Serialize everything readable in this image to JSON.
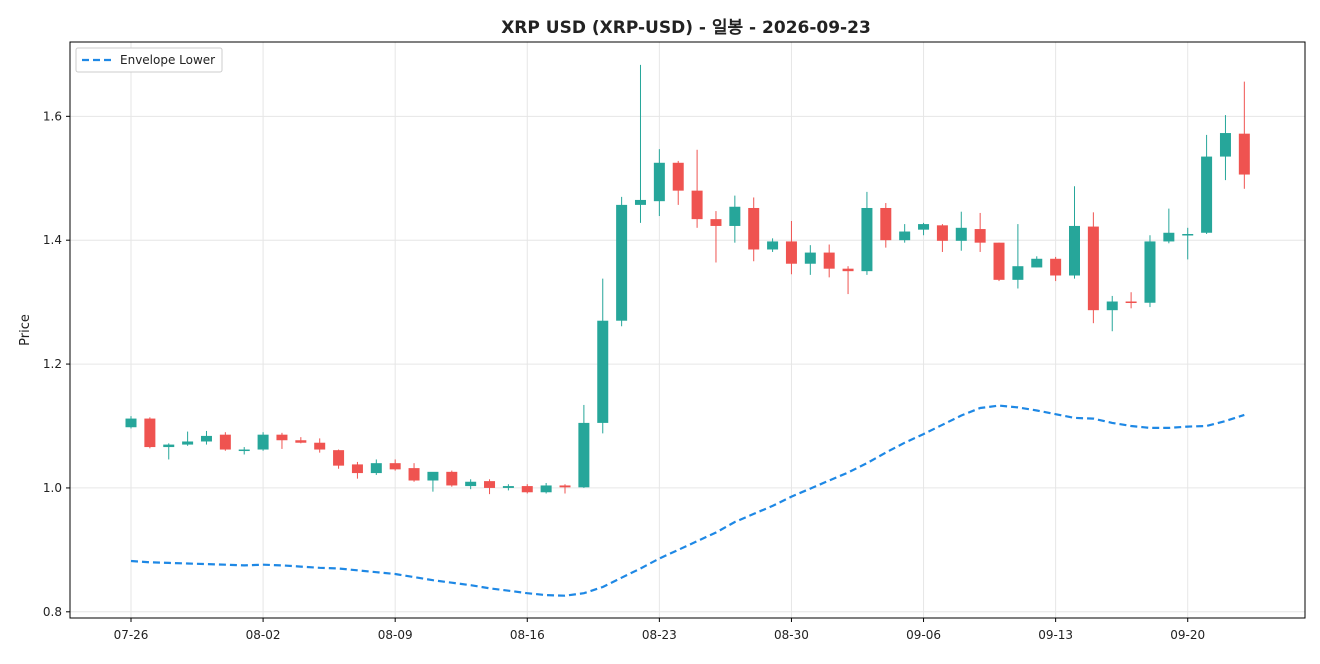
{
  "chart_data": {
    "type": "candlestick",
    "title": "XRP USD (XRP-USD) - 일봉 - 2026-09-23",
    "xlabel": "",
    "ylabel": "Price",
    "ylim": [
      0.79,
      1.72
    ],
    "y_ticks": [
      "0.8",
      "1.0",
      "1.2",
      "1.4",
      "1.6"
    ],
    "x_ticks": [
      "07-26",
      "08-02",
      "08-09",
      "08-16",
      "08-23",
      "08-30",
      "09-06",
      "09-13",
      "09-20"
    ],
    "grid": true,
    "legend": {
      "position": "top-left",
      "entries": [
        "Envelope Lower"
      ]
    },
    "colors": {
      "up": "#26a69a",
      "down": "#ef5350",
      "envelope": "#1e88e5",
      "grid": "#e6e6e6"
    },
    "dates": [
      "07-26",
      "07-27",
      "07-28",
      "07-29",
      "07-30",
      "07-31",
      "08-01",
      "08-02",
      "08-03",
      "08-04",
      "08-05",
      "08-06",
      "08-07",
      "08-08",
      "08-09",
      "08-10",
      "08-11",
      "08-12",
      "08-13",
      "08-14",
      "08-15",
      "08-16",
      "08-17",
      "08-18",
      "08-19",
      "08-20",
      "08-21",
      "08-22",
      "08-23",
      "08-24",
      "08-25",
      "08-26",
      "08-27",
      "08-28",
      "08-29",
      "08-30",
      "08-31",
      "09-01",
      "09-02",
      "09-03",
      "09-04",
      "09-05",
      "09-06",
      "09-07",
      "09-08",
      "09-09",
      "09-10",
      "09-11",
      "09-12",
      "09-13",
      "09-14",
      "09-15",
      "09-16",
      "09-17",
      "09-18",
      "09-19",
      "09-20",
      "09-21",
      "09-22",
      "09-23"
    ],
    "open": [
      1.098,
      1.112,
      1.066,
      1.07,
      1.075,
      1.086,
      1.062,
      1.062,
      1.086,
      1.077,
      1.073,
      1.061,
      1.038,
      1.024,
      1.04,
      1.032,
      1.012,
      1.026,
      1.003,
      1.011,
      1.0,
      1.003,
      0.993,
      1.004,
      1.001,
      1.105,
      1.27,
      1.457,
      1.463,
      1.525,
      1.48,
      1.434,
      1.423,
      1.452,
      1.385,
      1.398,
      1.362,
      1.38,
      1.354,
      1.35,
      1.452,
      1.4,
      1.417,
      1.424,
      1.399,
      1.418,
      1.396,
      1.336,
      1.356,
      1.37,
      1.343,
      1.422,
      1.287,
      1.301,
      1.299,
      1.398,
      1.41,
      1.412,
      1.535,
      1.572
    ],
    "close": [
      1.112,
      1.066,
      1.07,
      1.075,
      1.084,
      1.062,
      1.062,
      1.086,
      1.077,
      1.073,
      1.062,
      1.036,
      1.024,
      1.04,
      1.03,
      1.012,
      1.026,
      1.004,
      1.01,
      1.0,
      1.003,
      0.993,
      1.004,
      1.001,
      1.105,
      1.27,
      1.457,
      1.465,
      1.525,
      1.48,
      1.434,
      1.423,
      1.454,
      1.385,
      1.398,
      1.362,
      1.38,
      1.354,
      1.35,
      1.452,
      1.4,
      1.414,
      1.426,
      1.399,
      1.42,
      1.396,
      1.336,
      1.358,
      1.37,
      1.343,
      1.423,
      1.287,
      1.301,
      1.299,
      1.398,
      1.412,
      1.41,
      1.535,
      1.573,
      1.506
    ],
    "high": [
      1.116,
      1.114,
      1.072,
      1.091,
      1.092,
      1.09,
      1.066,
      1.09,
      1.089,
      1.082,
      1.08,
      1.062,
      1.042,
      1.046,
      1.046,
      1.04,
      1.024,
      1.028,
      1.014,
      1.014,
      1.006,
      1.006,
      1.008,
      1.006,
      1.134,
      1.338,
      1.47,
      1.683,
      1.547,
      1.528,
      1.546,
      1.447,
      1.472,
      1.469,
      1.403,
      1.431,
      1.392,
      1.393,
      1.358,
      1.478,
      1.46,
      1.426,
      1.428,
      1.426,
      1.446,
      1.444,
      1.396,
      1.426,
      1.374,
      1.373,
      1.487,
      1.445,
      1.31,
      1.316,
      1.408,
      1.451,
      1.42,
      1.57,
      1.602,
      1.656
    ],
    "low": [
      1.096,
      1.064,
      1.046,
      1.068,
      1.07,
      1.06,
      1.054,
      1.06,
      1.063,
      1.072,
      1.057,
      1.031,
      1.015,
      1.021,
      1.028,
      1.01,
      0.994,
      1.002,
      0.998,
      0.99,
      0.996,
      0.991,
      0.991,
      0.991,
      1.0,
      1.088,
      1.261,
      1.428,
      1.439,
      1.457,
      1.42,
      1.364,
      1.396,
      1.366,
      1.381,
      1.345,
      1.344,
      1.34,
      1.313,
      1.344,
      1.388,
      1.396,
      1.408,
      1.381,
      1.383,
      1.381,
      1.334,
      1.322,
      1.356,
      1.334,
      1.338,
      1.266,
      1.253,
      1.29,
      1.292,
      1.395,
      1.369,
      1.41,
      1.497,
      1.483
    ],
    "series": [
      {
        "name": "Envelope Lower",
        "values": [
          0.882,
          0.88,
          0.879,
          0.878,
          0.877,
          0.876,
          0.875,
          0.876,
          0.875,
          0.873,
          0.871,
          0.87,
          0.867,
          0.864,
          0.861,
          0.856,
          0.851,
          0.847,
          0.843,
          0.838,
          0.834,
          0.83,
          0.827,
          0.826,
          0.83,
          0.84,
          0.855,
          0.87,
          0.886,
          0.9,
          0.914,
          0.928,
          0.945,
          0.958,
          0.971,
          0.986,
          0.999,
          1.012,
          1.025,
          1.04,
          1.057,
          1.073,
          1.087,
          1.102,
          1.117,
          1.129,
          1.133,
          1.13,
          1.125,
          1.119,
          1.113,
          1.112,
          1.105,
          1.1,
          1.097,
          1.097,
          1.099,
          1.1,
          1.108,
          1.118
        ]
      }
    ]
  }
}
